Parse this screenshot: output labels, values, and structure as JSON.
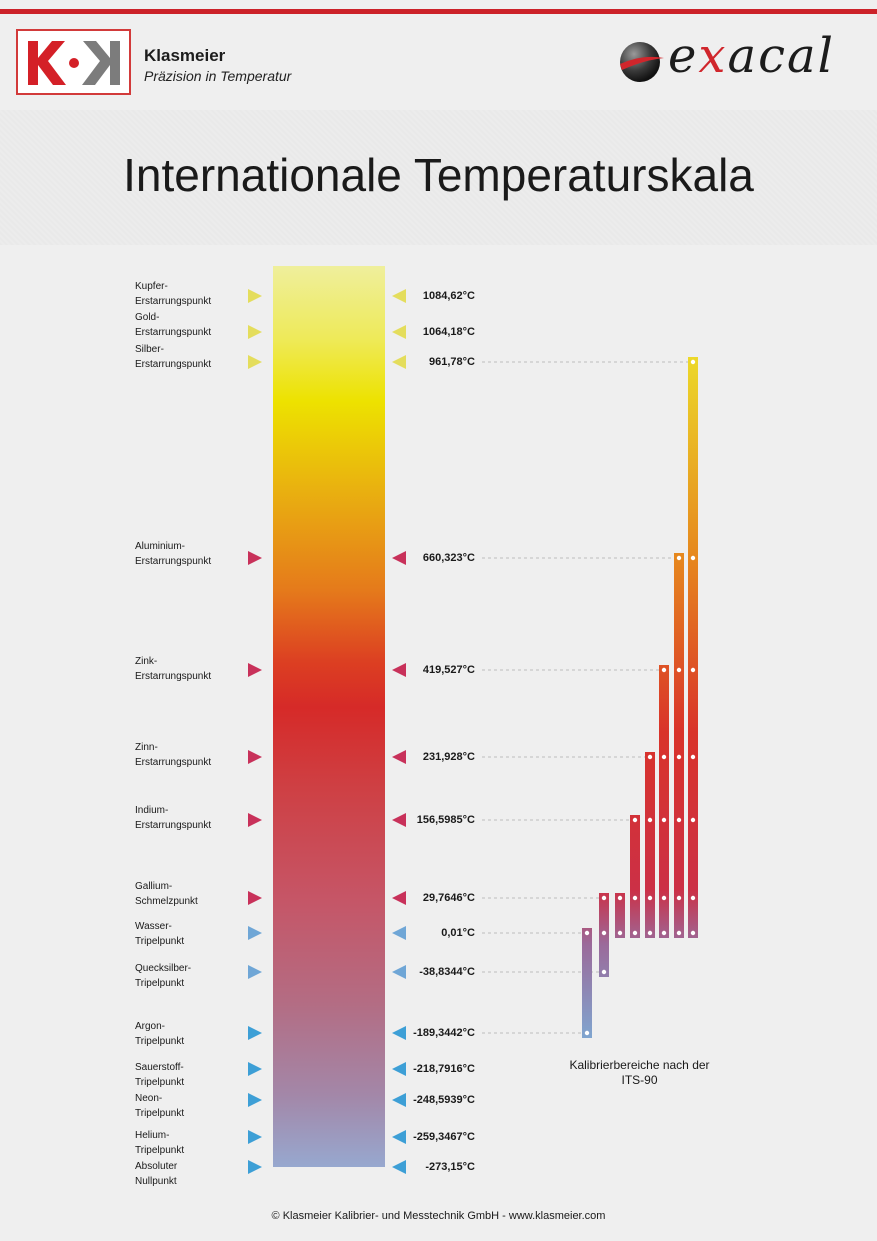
{
  "header": {
    "brand_name": "Klasmeier",
    "brand_tagline": "Präzision in Temperatur",
    "logo_text": "K·K",
    "partner_logo": "exacal",
    "title": "Internationale Temperaturskala"
  },
  "fixed_points": [
    {
      "label_1": "Kupfer-",
      "label_2": "Erstarrungspunkt",
      "value": "1084,62°C",
      "color": "#e4dd5c"
    },
    {
      "label_1": "Gold-",
      "label_2": "Erstarrungspunkt",
      "value": "1064,18°C",
      "color": "#e4dd5c"
    },
    {
      "label_1": "Silber-",
      "label_2": "Erstarrungspunkt",
      "value": "961,78°C",
      "color": "#e4dd5c"
    },
    {
      "label_1": "Aluminium-",
      "label_2": "Erstarrungspunkt",
      "value": "660,323°C",
      "color": "#c8315a"
    },
    {
      "label_1": "Zink-",
      "label_2": "Erstarrungspunkt",
      "value": "419,527°C",
      "color": "#c8315a"
    },
    {
      "label_1": "Zinn-",
      "label_2": "Erstarrungspunkt",
      "value": "231,928°C",
      "color": "#c8315a"
    },
    {
      "label_1": "Indium-",
      "label_2": "Erstarrungspunkt",
      "value": "156,5985°C",
      "color": "#c8315a"
    },
    {
      "label_1": "Gallium-",
      "label_2": "Schmelzpunkt",
      "value": "29,7646°C",
      "color": "#c8315a"
    },
    {
      "label_1": "Wasser-",
      "label_2": "Tripelpunkt",
      "value": "0,01°C",
      "color": "#6fa6d6"
    },
    {
      "label_1": "Quecksilber-",
      "label_2": "Tripelpunkt",
      "value": "-38,8344°C",
      "color": "#6fa6d6"
    },
    {
      "label_1": "Argon-",
      "label_2": "Tripelpunkt",
      "value": "-189,3442°C",
      "color": "#3d9fd6"
    },
    {
      "label_1": "Sauerstoff-",
      "label_2": "Tripelpunkt",
      "value": "-218,7916°C",
      "color": "#3d9fd6"
    },
    {
      "label_1": "Neon-",
      "label_2": "Tripelpunkt",
      "value": "-248,5939°C",
      "color": "#3d9fd6"
    },
    {
      "label_1": "Helium-",
      "label_2": "Tripelpunkt",
      "value": "-259,3467°C",
      "color": "#3d9fd6"
    },
    {
      "label_1": "Absoluter",
      "label_2": "Nullpunkt",
      "value": "-273,15°C",
      "color": "#3d9fd6"
    }
  ],
  "calibration_ranges": {
    "caption_line_1": "Kalibrierbereiche nach der",
    "caption_line_2": "ITS-90",
    "ranges": [
      {
        "from": "-189,3442°C",
        "to": "0,01°C"
      },
      {
        "from": "-38,8344°C",
        "to": "29,7646°C"
      },
      {
        "from": "0,01°C",
        "to": "29,7646°C"
      },
      {
        "from": "0,01°C",
        "to": "156,5985°C"
      },
      {
        "from": "0,01°C",
        "to": "231,928°C"
      },
      {
        "from": "0,01°C",
        "to": "419,527°C"
      },
      {
        "from": "0,01°C",
        "to": "660,323°C"
      },
      {
        "from": "0,01°C",
        "to": "961,78°C"
      }
    ]
  },
  "footer": "© Klasmeier Kalibrier- und Messtechnik GmbH - www.klasmeier.com"
}
